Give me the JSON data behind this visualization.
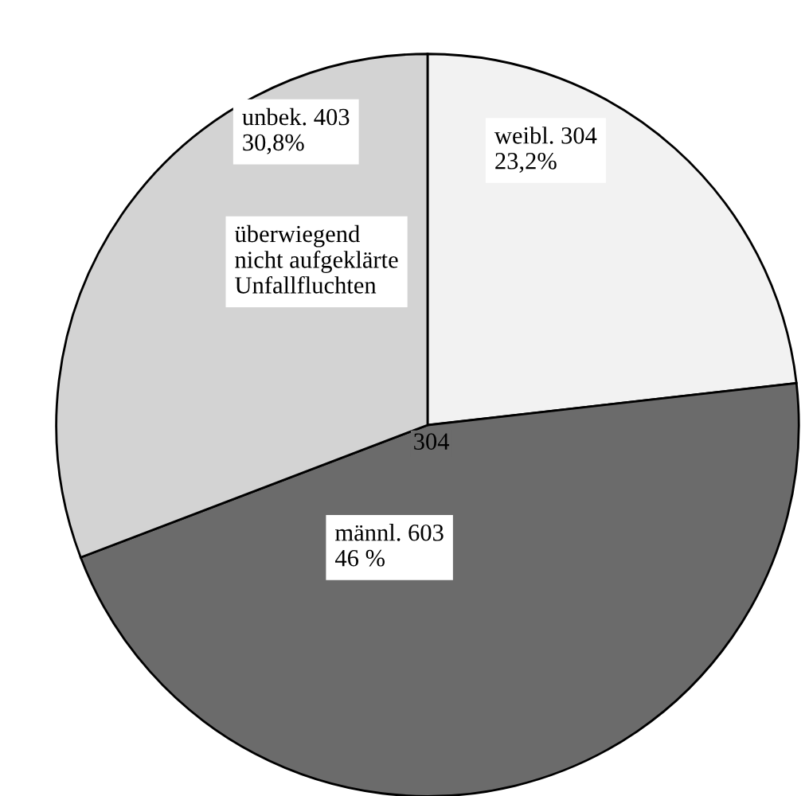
{
  "chart_data": {
    "type": "pie",
    "categories": [
      "weibl. 304",
      "männl. 603",
      "unbek. 403"
    ],
    "values": [
      23.2,
      46,
      30.8
    ],
    "colors": [
      "#f2f2f2",
      "#6b6b6b",
      "#d3d3d3"
    ],
    "value_labels": [
      "23,2%",
      "46 %",
      "30,8%"
    ],
    "annotations": [
      "304",
      "überwiegend\nnicht aufgeklärte\nUnfallfluchten"
    ],
    "legend": false
  }
}
